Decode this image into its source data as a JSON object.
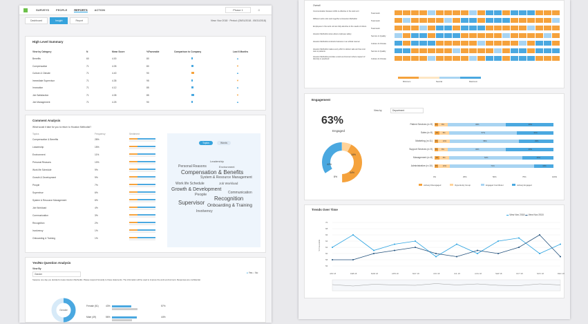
{
  "nav": {
    "tabs": [
      "SURVEYS",
      "PEOPLE",
      "REPORTS",
      "ACTION"
    ],
    "account": "Phase 1"
  },
  "sub": {
    "tabs": [
      "Dashboard",
      "Insight",
      "Report"
    ],
    "period": "View: Nov 2018 · Period: (05/01/2018 - 05/31/2018)"
  },
  "hl": {
    "title": "High Level Summary",
    "headers": [
      "View by Category",
      "N",
      "Mean Score",
      "%Favorable",
      "Comparison to Company",
      "Last 6 Months"
    ],
    "rows": [
      [
        "Benefits",
        "60",
        "4.00",
        "80"
      ],
      [
        "Compensation",
        "71",
        "4.05",
        "80"
      ],
      [
        "Culture & Climate",
        "71",
        "4.40",
        "90"
      ],
      [
        "Immediate Supervisor",
        "71",
        "4.35",
        "95"
      ],
      [
        "Innovation",
        "71",
        "4.12",
        "85"
      ],
      [
        "Job Satisfaction",
        "71",
        "4.08",
        "85"
      ],
      [
        "Job Management",
        "71",
        "4.25",
        "90"
      ]
    ]
  },
  "ca": {
    "title": "Comment Analysis",
    "question": "What would it take for you to return to Houston Methodist?",
    "col1": "Topics",
    "col2": "Frequency",
    "col3": "Sentiment",
    "rows": [
      [
        "Compensation & Benefits",
        "28%"
      ],
      [
        "Leadership",
        "15%"
      ],
      [
        "Environment",
        "11%"
      ],
      [
        "Personal Reasons",
        "10%"
      ],
      [
        "Work life Schedule",
        "9%"
      ],
      [
        "Growth & Development",
        "9%"
      ],
      [
        "People",
        "7%"
      ],
      [
        "Supervisor",
        "6%"
      ],
      [
        "System & Resource Management",
        "6%"
      ],
      [
        "Job Workload",
        "4%"
      ],
      [
        "Communication",
        "3%"
      ],
      [
        "Recognition",
        "2%"
      ],
      [
        "Involvency",
        "1%"
      ],
      [
        "Onboarding & Training",
        "1%"
      ]
    ],
    "toggle": [
      "Topics",
      "Words"
    ],
    "cloud": [
      "Leadership",
      "Personal Reasons",
      "Environment",
      "Compensation & Benefits",
      "System & Resource Management",
      "Work life Schedule",
      "Job Workload",
      "Growth & Development",
      "Communication",
      "People",
      "Recognition",
      "Supervisor",
      "Onboarding & Training",
      "Involvency"
    ]
  },
  "yn": {
    "title": "Yes/No Question Analysis",
    "viewby": "View By",
    "select": "Gender",
    "legend": [
      "Yes",
      "No"
    ],
    "text": "Suppose one day you decided to leave Houston Methodist. Please respond honestly to these statements. The information will be used to improve the work environment. Responses are confidential.",
    "donut": "Gender",
    "rows": [
      [
        "Female (51)",
        "43%",
        "57%"
      ],
      [
        "Male (49)",
        "56%",
        "44%"
      ]
    ]
  },
  "heat": {
    "overall": "Overall",
    "rows": [
      [
        "Communication between shifts is effective in the work unit",
        "Teamwork"
      ],
      [
        "Different work units work together at Houston Methodist",
        "Teamwork"
      ],
      [
        "Employees in the work unit are fully attentive to the needs of others",
        "Teamwork"
      ],
      [
        "Houston Methodist cares about employee safety",
        "Service & Quality"
      ],
      [
        "Houston Methodist conducts business in an ethical manner",
        "Culture & Climate"
      ],
      [
        "Houston Methodist makes every effort to deliver safe and low-cost care to patients",
        "Service & Quality"
      ],
      [
        "Houston Methodist provides a work environment where respect of diversity is practiced",
        "Culture & Climate"
      ]
    ],
    "legend": [
      "Minimum",
      "Neutral",
      "Maximum"
    ]
  },
  "eng": {
    "title": "Engagement",
    "pct": "63%",
    "label": "Engaged",
    "viewby": "View by",
    "select": "Department",
    "donut": [
      "42%",
      "8%",
      "34%",
      "16%"
    ],
    "rows": [
      {
        "name": "Patient Services (n=9)",
        "v": [
          3,
          8,
          49,
          40
        ]
      },
      {
        "name": "Sales (n=9)",
        "v": [
          4,
          8,
          57,
          31
        ]
      },
      {
        "name": "Marketing (n=11)",
        "v": [
          3,
          10,
          58,
          29
        ]
      },
      {
        "name": "Support Services (n=9)",
        "v": [
          3,
          8,
          49,
          40
        ]
      },
      {
        "name": "Management (n=8)",
        "v": [
          4,
          8,
          62,
          26
        ]
      },
      {
        "name": "Administrative (n=10)",
        "v": [
          3,
          10,
          71,
          16
        ]
      }
    ],
    "axis": [
      "0%",
      "25%",
      "50%",
      "75%",
      "100%"
    ],
    "legend": [
      "Actively Disengaged",
      "Opportunity Group",
      "Engaged Contributor",
      "Actively Engaged"
    ]
  },
  "trend": {
    "title": "Trends Over Time",
    "legend": [
      "View Nov 2018",
      "View Nov 2018"
    ],
    "ylabel": "% Favorable",
    "yticks": [
      "70",
      "68",
      "66",
      "64",
      "62",
      "60",
      "58",
      "56"
    ],
    "months": [
      "JAN 18",
      "FEB 18",
      "MAR 18",
      "APR 18",
      "MAY 18",
      "JUN 18",
      "JUL 18",
      "AUG 18",
      "SEP 18",
      "OCT 18",
      "NOV 18",
      "DEC 18"
    ],
    "s1": [
      62,
      66,
      61,
      63,
      64,
      59,
      63,
      60,
      64,
      65,
      60,
      63
    ],
    "s2": [
      58,
      58,
      60,
      61,
      62,
      60,
      59,
      61,
      60,
      62,
      66,
      59
    ]
  },
  "colors": {
    "accent": "#36a3dc",
    "orange": "#f5a23c",
    "blue": "#4aa8e0"
  }
}
